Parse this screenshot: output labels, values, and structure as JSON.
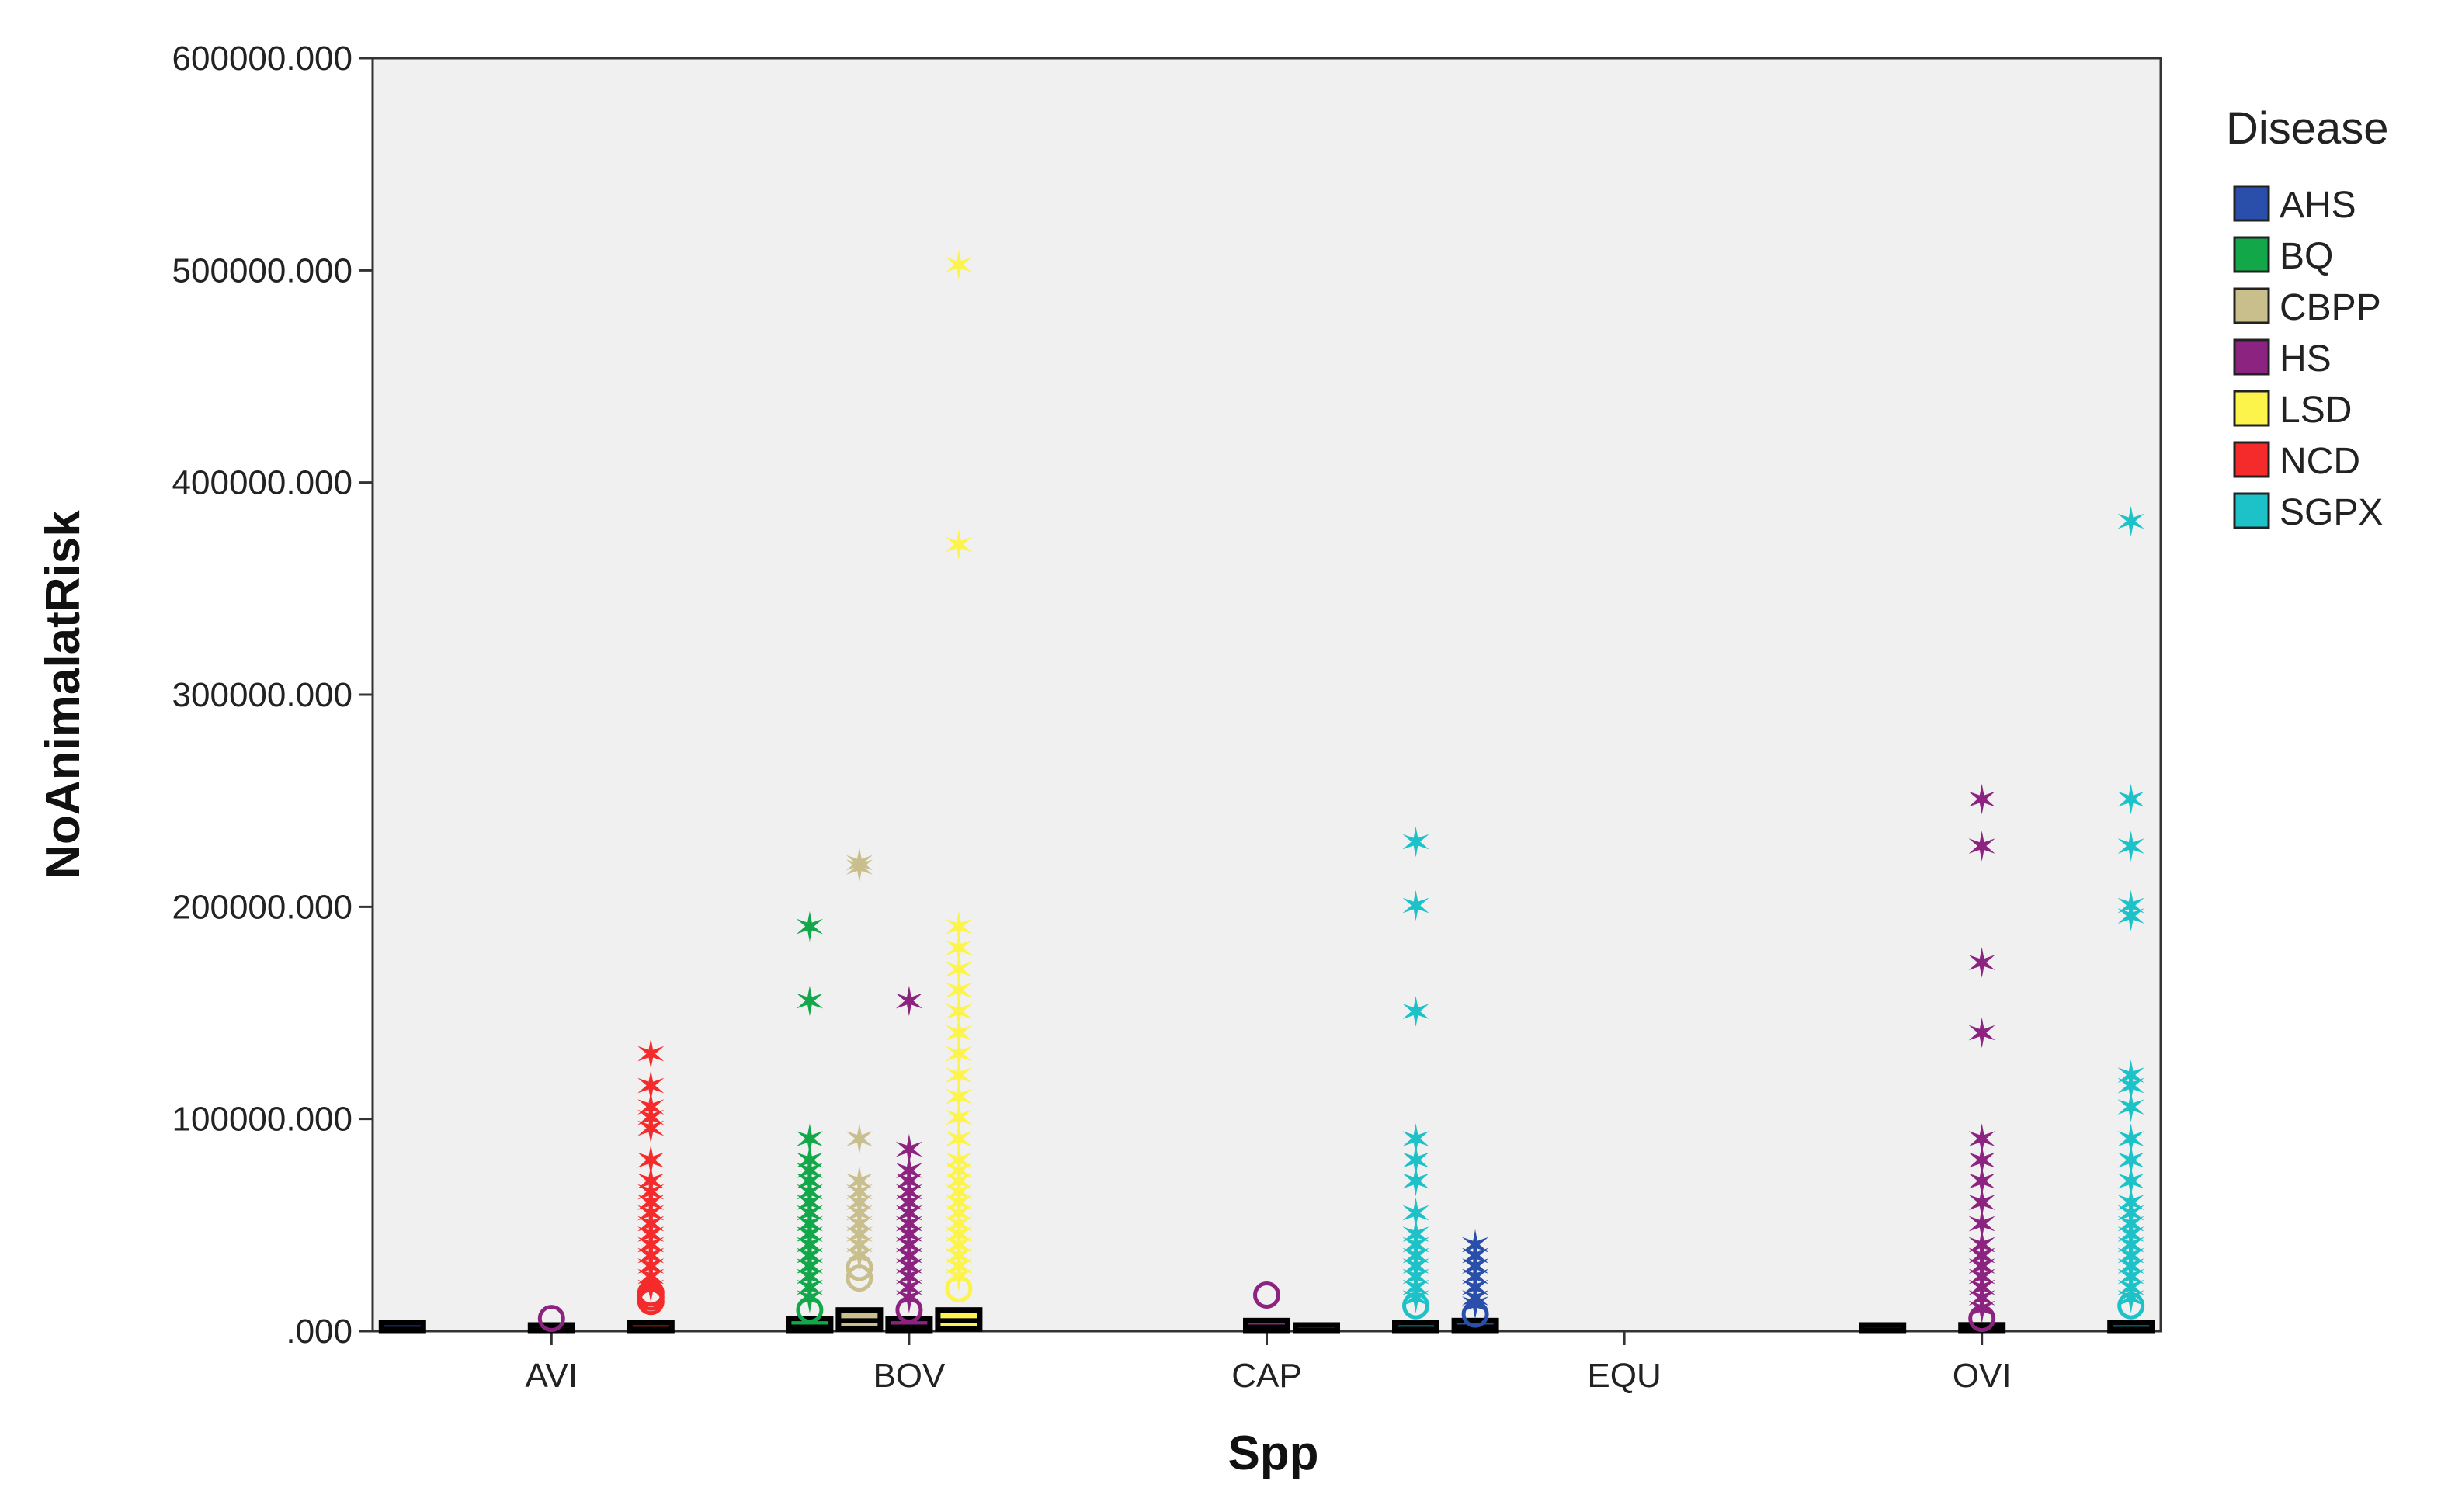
{
  "chart_data": {
    "type": "box",
    "xlabel": "Spp",
    "ylabel": "NoAnimalatRisk",
    "ylim": [
      0,
      600000
    ],
    "yticks": [
      {
        "value": 0,
        "label": ".000"
      },
      {
        "value": 100000,
        "label": "100000.000"
      },
      {
        "value": 200000,
        "label": "200000.000"
      },
      {
        "value": 300000,
        "label": "300000.000"
      },
      {
        "value": 400000,
        "label": "400000.000"
      },
      {
        "value": 500000,
        "label": "500000.000"
      },
      {
        "value": 600000,
        "label": "600000.000"
      }
    ],
    "categories": [
      "AVI",
      "BOV",
      "CAP",
      "EQU",
      "OVI"
    ],
    "legend_title": "Disease",
    "legend_position": "right",
    "series": [
      {
        "name": "AHS",
        "color": "#2a4faa"
      },
      {
        "name": "BQ",
        "color": "#12a84a"
      },
      {
        "name": "CBPP",
        "color": "#c8bf8c"
      },
      {
        "name": "HS",
        "color": "#8c2380"
      },
      {
        "name": "LSD",
        "color": "#fcf34b"
      },
      {
        "name": "NCD",
        "color": "#f52a2a"
      },
      {
        "name": "SGPX",
        "color": "#1cc2c8"
      }
    ],
    "boxes": [
      {
        "category": "AVI",
        "disease": "AHS",
        "slot": 0,
        "q1": 0,
        "median": 1000,
        "q3": 4000,
        "outliers": [],
        "extremes": []
      },
      {
        "category": "AVI",
        "disease": "HS",
        "slot": 3,
        "q1": 0,
        "median": 500,
        "q3": 2000,
        "outliers": [
          6000
        ],
        "extremes": []
      },
      {
        "category": "AVI",
        "disease": "NCD",
        "slot": 5,
        "q1": 0,
        "median": 1000,
        "q3": 4000,
        "outliers": [
          14000,
          16000,
          18000
        ],
        "extremes": [
          20000,
          25000,
          30000,
          35000,
          40000,
          45000,
          50000,
          55000,
          60000,
          65000,
          70000,
          80000,
          95000,
          100000,
          105000,
          115000,
          130000
        ]
      },
      {
        "category": "BOV",
        "disease": "BQ",
        "slot": 1,
        "q1": 0,
        "median": 2000,
        "q3": 6000,
        "outliers": [
          10000
        ],
        "extremes": [
          15000,
          20000,
          25000,
          30000,
          35000,
          40000,
          45000,
          50000,
          55000,
          60000,
          65000,
          70000,
          75000,
          80000,
          90000,
          155000,
          190000
        ]
      },
      {
        "category": "BOV",
        "disease": "CBPP",
        "slot": 2,
        "q1": 1000,
        "median": 5000,
        "q3": 10000,
        "outliers": [
          25000,
          30000
        ],
        "extremes": [
          35000,
          40000,
          45000,
          50000,
          55000,
          60000,
          65000,
          70000,
          90000,
          218000,
          220000
        ]
      },
      {
        "category": "BOV",
        "disease": "HS",
        "slot": 3,
        "q1": 0,
        "median": 2000,
        "q3": 6000,
        "outliers": [
          10000
        ],
        "extremes": [
          15000,
          20000,
          25000,
          30000,
          35000,
          40000,
          45000,
          50000,
          55000,
          60000,
          65000,
          70000,
          75000,
          85000,
          155000
        ]
      },
      {
        "category": "BOV",
        "disease": "LSD",
        "slot": 4,
        "q1": 1000,
        "median": 5000,
        "q3": 10000,
        "outliers": [
          20000
        ],
        "extremes": [
          25000,
          30000,
          35000,
          40000,
          45000,
          50000,
          55000,
          60000,
          65000,
          70000,
          75000,
          80000,
          90000,
          100000,
          110000,
          120000,
          130000,
          140000,
          150000,
          160000,
          170000,
          180000,
          190000,
          370000,
          502000
        ]
      },
      {
        "category": "CAP",
        "disease": "HS",
        "slot": 3,
        "q1": 0,
        "median": 2000,
        "q3": 5000,
        "outliers": [
          17000
        ],
        "extremes": []
      },
      {
        "category": "CAP",
        "disease": "LSD",
        "slot": 4,
        "q1": 0,
        "median": 500,
        "q3": 1500,
        "outliers": [],
        "extremes": []
      },
      {
        "category": "CAP",
        "disease": "SGPX",
        "slot": 6,
        "q1": 0,
        "median": 1000,
        "q3": 4000,
        "outliers": [
          12000
        ],
        "extremes": [
          15000,
          20000,
          25000,
          30000,
          35000,
          40000,
          45000,
          55000,
          70000,
          80000,
          90000,
          150000,
          200000,
          230000
        ]
      },
      {
        "category": "EQU",
        "disease": "AHS",
        "slot": 0,
        "q1": 0,
        "median": 2000,
        "q3": 5000,
        "outliers": [
          8000
        ],
        "extremes": [
          12000,
          15000,
          20000,
          25000,
          30000,
          35000,
          40000
        ]
      },
      {
        "category": "OVI",
        "disease": "BQ",
        "slot": 1,
        "q1": 0,
        "median": 500,
        "q3": 1500,
        "outliers": [],
        "extremes": []
      },
      {
        "category": "OVI",
        "disease": "HS",
        "slot": 3,
        "q1": 0,
        "median": 1000,
        "q3": 3000,
        "outliers": [
          6000
        ],
        "extremes": [
          10000,
          15000,
          20000,
          25000,
          30000,
          35000,
          40000,
          50000,
          60000,
          70000,
          80000,
          90000,
          140000,
          173000,
          228000,
          250000
        ]
      },
      {
        "category": "OVI",
        "disease": "SGPX",
        "slot": 6,
        "q1": 0,
        "median": 1000,
        "q3": 4000,
        "outliers": [
          12000
        ],
        "extremes": [
          15000,
          20000,
          25000,
          30000,
          35000,
          40000,
          45000,
          50000,
          55000,
          60000,
          70000,
          80000,
          90000,
          105000,
          115000,
          120000,
          195000,
          200000,
          228000,
          250000,
          381000
        ]
      }
    ]
  }
}
